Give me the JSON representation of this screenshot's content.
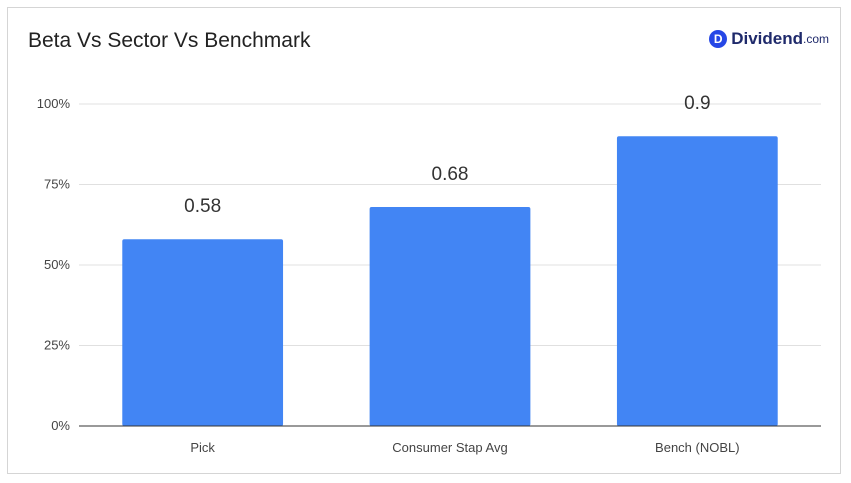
{
  "header": {
    "title": "Beta Vs Sector Vs Benchmark",
    "logo_mark": "D",
    "logo_word": "Dividend",
    "logo_tld": ".com"
  },
  "colors": {
    "bar": "#4285f4",
    "grid": "#e0e0e0",
    "axis": "#333333",
    "brand": "#2647e6"
  },
  "chart_data": {
    "type": "bar",
    "categories": [
      "Pick",
      "Consumer Stap Avg",
      "Bench (NOBL)"
    ],
    "values": [
      0.58,
      0.68,
      0.9
    ],
    "value_labels": [
      "0.58",
      "0.68",
      "0.9"
    ],
    "yticks": [
      0,
      0.25,
      0.5,
      0.75,
      1.0
    ],
    "ytick_labels": [
      "0%",
      "25%",
      "50%",
      "75%",
      "100%"
    ],
    "ylim": [
      0,
      1.0
    ],
    "grid": true,
    "title": "Beta Vs Sector Vs Benchmark"
  }
}
